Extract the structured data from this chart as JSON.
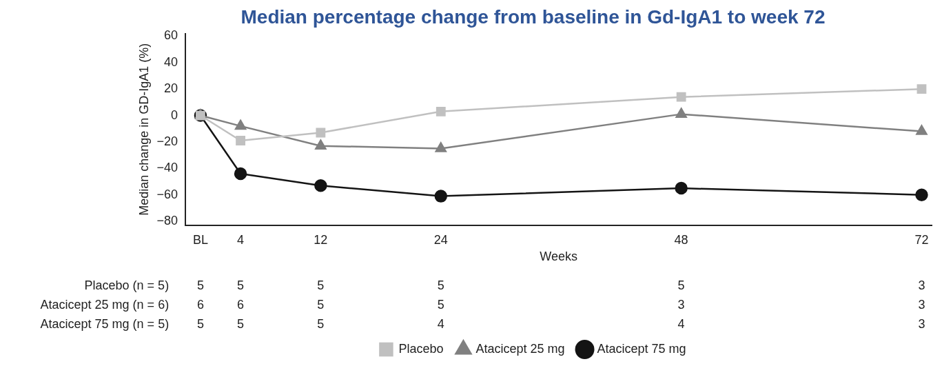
{
  "chart_data": {
    "type": "line",
    "title": "Median percentage change from baseline in Gd-IgA1 to week 72",
    "xlabel": "Weeks",
    "ylabel": "Median change in GD-IgA1 (%)",
    "x": [
      0,
      4,
      12,
      24,
      48,
      72
    ],
    "series": [
      {
        "name": "Placebo",
        "color": "#c0c0c0",
        "marker": "square",
        "values": [
          0,
          -19,
          -13,
          3,
          14,
          20
        ]
      },
      {
        "name": "Atacicept 25 mg",
        "color": "#808080",
        "marker": "triangle",
        "values": [
          0,
          -8,
          -23,
          -25,
          1,
          -12
        ]
      },
      {
        "name": "Atacicept 75 mg",
        "color": "#141414",
        "marker": "circle",
        "values": [
          0,
          -44,
          -53,
          -61,
          -55,
          -60
        ]
      }
    ],
    "xlim": [
      -1.5,
      73
    ],
    "xticks": [
      {
        "value": 0,
        "label": "BL"
      },
      4,
      12,
      24,
      48,
      72
    ],
    "ylim": [
      -83,
      62
    ],
    "yticks": [
      -80,
      -60,
      -40,
      -20,
      0,
      20,
      40,
      60
    ],
    "grid": false,
    "legend": "bottom",
    "line_style": "solid",
    "annotations": [
      "Placebo (n = 5)",
      "5",
      "5",
      "5",
      "5",
      "5",
      "3",
      "Atacicept 25 mg (n = 6)",
      "6",
      "6",
      "5",
      "5",
      "3",
      "3",
      "Atacicept 75 mg (n = 5)",
      "5",
      "5",
      "5",
      "4",
      "4",
      "3"
    ]
  }
}
